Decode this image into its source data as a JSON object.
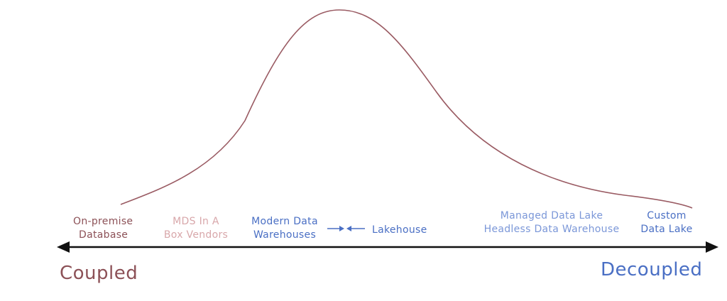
{
  "colors": {
    "curve": "#9a5b63",
    "axis": "#111111",
    "coupled": "#8c5157",
    "onprem": "#8c5157",
    "mds": "#d8a7aa",
    "blue": "#4a6fc4",
    "lightblue": "#7b97d8"
  },
  "labels": {
    "onprem": {
      "line1": "On-premise",
      "line2": "Database"
    },
    "mds": {
      "line1": "MDS In A",
      "line2": "Box Vendors"
    },
    "modern": {
      "line1": "Modern Data",
      "line2": "Warehouses"
    },
    "lakehouse": "Lakehouse",
    "managed": {
      "line1": "Managed Data Lake",
      "line2": "Headless Data Warehouse"
    },
    "custom": {
      "line1": "Custom",
      "line2": "Data Lake"
    }
  },
  "axis": {
    "left": "Coupled",
    "right": "Decoupled"
  }
}
